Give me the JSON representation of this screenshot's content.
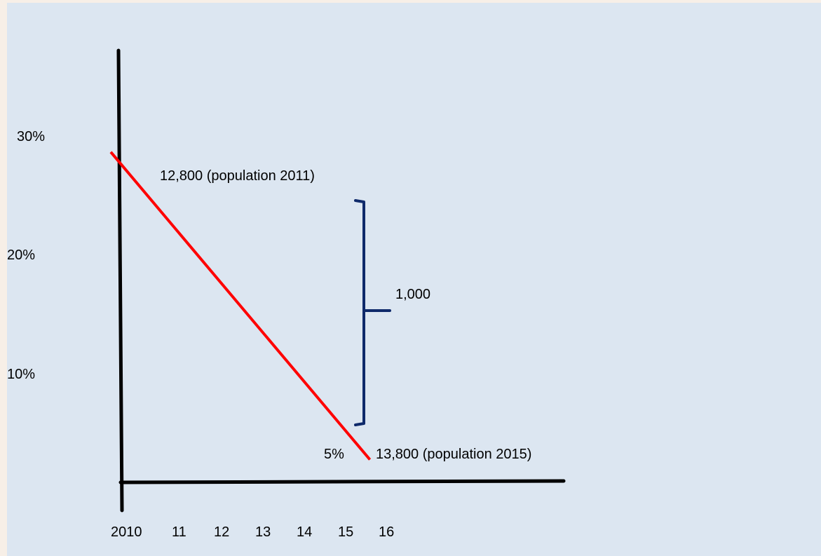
{
  "colors": {
    "background": "#dce6f1",
    "axis": "#000000",
    "line": "#ff0000",
    "bracket": "#0f2a6b"
  },
  "chart_data": {
    "type": "line",
    "title": "",
    "xlabel": "",
    "ylabel": "",
    "x_ticks": [
      "2010",
      "11",
      "12",
      "13",
      "14",
      "15",
      "16"
    ],
    "y_ticks": [
      "30%",
      "20%",
      "10%"
    ],
    "ylim": [
      0,
      30
    ],
    "series": [
      {
        "points": [
          {
            "x": 2010,
            "y": 28
          },
          {
            "x": 2015.6,
            "y": 5
          }
        ]
      }
    ],
    "annotations": {
      "start_label": "12,800 (population 2011)",
      "end_value_label": "5%",
      "end_label": "13,800 (population 2015)",
      "bracket_label": "1,000"
    }
  }
}
